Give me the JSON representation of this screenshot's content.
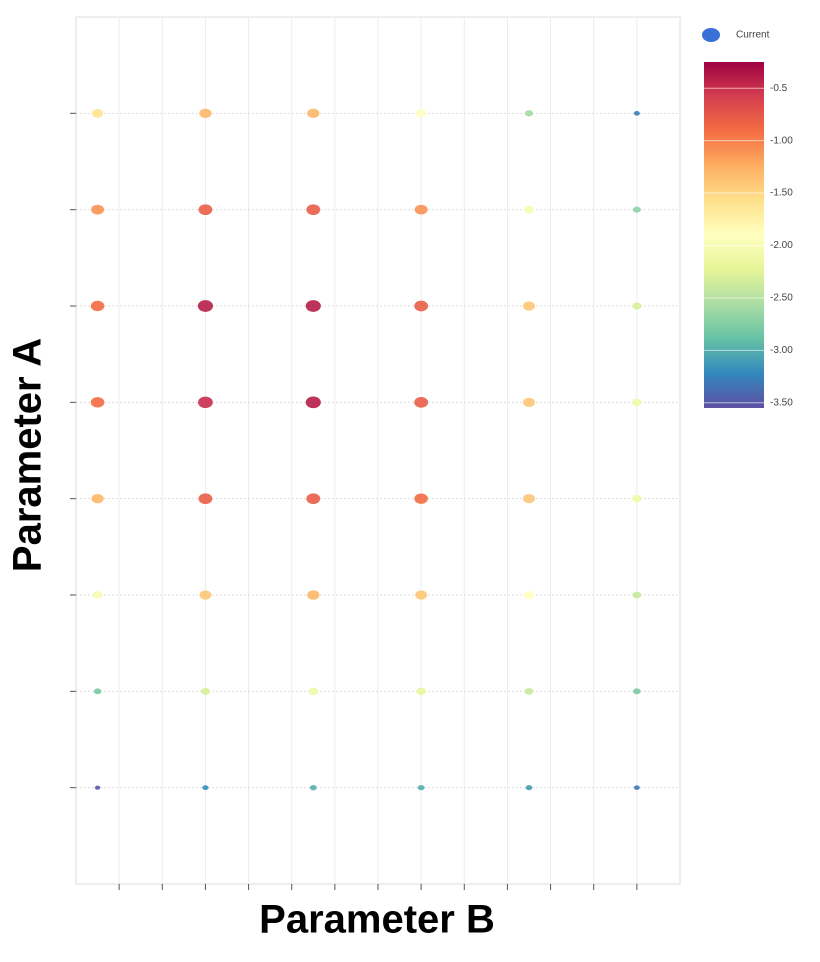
{
  "chart_data": {
    "type": "scatter",
    "xlabel": "Parameter B",
    "ylabel": "Parameter A",
    "legend": {
      "name": "Current",
      "color": "#3a6fd8",
      "position": "upper right"
    },
    "xlim": [
      0,
      14
    ],
    "xticks": [
      1,
      2,
      3,
      4,
      5,
      6,
      7,
      8,
      9,
      10,
      11,
      12,
      13
    ],
    "ylim": [
      0,
      9
    ],
    "yticks": [
      1,
      2,
      3,
      4,
      5,
      6,
      7,
      8
    ],
    "grid": true,
    "x": [
      0.5,
      3,
      5.5,
      8,
      10.5,
      13,
      0.5,
      3,
      5.5,
      8,
      10.5,
      13,
      0.5,
      3,
      5.5,
      8,
      10.5,
      13,
      0.5,
      3,
      5.5,
      8,
      10.5,
      13,
      0.5,
      3,
      5.5,
      8,
      10.5,
      13,
      0.5,
      3,
      5.5,
      8,
      10.5,
      13,
      0.5,
      3,
      5.5,
      8,
      10.5,
      13,
      0.5,
      3,
      5.5,
      8,
      10.5,
      13
    ],
    "y": [
      8,
      8,
      8,
      8,
      8,
      8,
      7,
      7,
      7,
      7,
      7,
      7,
      6,
      6,
      6,
      6,
      6,
      6,
      5,
      5,
      5,
      5,
      5,
      5,
      4,
      4,
      4,
      4,
      4,
      4,
      3,
      3,
      3,
      3,
      3,
      3,
      2,
      2,
      2,
      2,
      2,
      2,
      1,
      1,
      1,
      1,
      1,
      1
    ],
    "values": [
      -1.6,
      -1.3,
      -1.3,
      -1.9,
      -2.6,
      -3.3,
      -1.1,
      -0.8,
      -0.8,
      -1.1,
      -2.0,
      -2.7,
      -0.9,
      -0.4,
      -0.4,
      -0.8,
      -1.4,
      -2.3,
      -0.9,
      -0.5,
      -0.4,
      -0.8,
      -1.4,
      -2.1,
      -1.3,
      -0.8,
      -0.8,
      -0.9,
      -1.4,
      -2.1,
      -2.0,
      -1.4,
      -1.3,
      -1.4,
      -1.9,
      -2.4,
      -2.8,
      -2.3,
      -2.1,
      -2.2,
      -2.4,
      -2.8,
      -3.5,
      -3.2,
      -3.0,
      -3.0,
      -3.1,
      -3.3
    ],
    "clim": [
      -0.25,
      -3.55
    ],
    "cticks": [
      -0.5,
      {
        "value": -1,
        "label": "-1.00"
      },
      {
        "value": -1.5,
        "label": "-1.50"
      },
      {
        "value": -2,
        "label": "-2.00"
      },
      {
        "value": -2.5,
        "label": "-2.50"
      },
      {
        "value": -3,
        "label": "-3.00"
      },
      {
        "value": -3.5,
        "label": "-3.50"
      }
    ],
    "colormap": [
      "#9e0142",
      "#d53e4f",
      "#f46d43",
      "#fdae61",
      "#fee08b",
      "#ffffbf",
      "#e6f598",
      "#abdda4",
      "#66c2a5",
      "#3288bd",
      "#5e4fa2"
    ]
  }
}
